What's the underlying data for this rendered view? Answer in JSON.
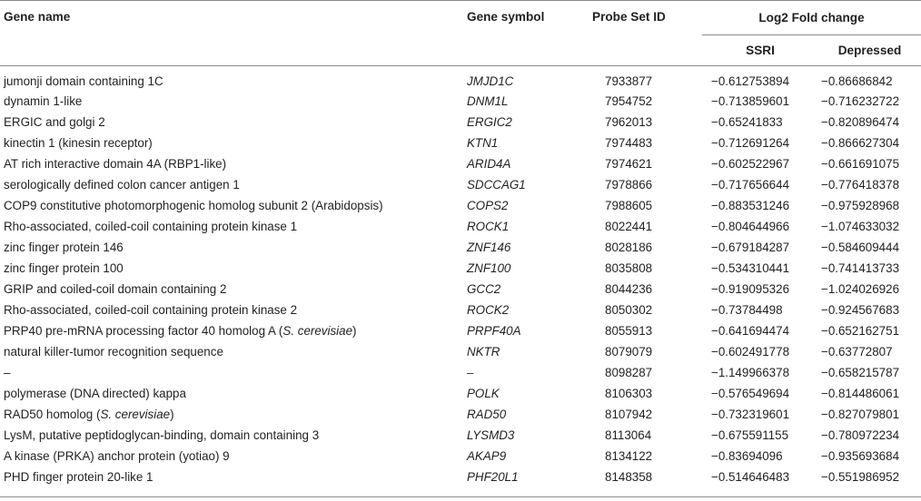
{
  "headers": {
    "gene_name": "Gene name",
    "gene_symbol": "Gene symbol",
    "probe_set_id": "Probe Set ID",
    "log2_fold_change": "Log2 Fold change",
    "ssri": "SSRI",
    "depressed": "Depressed"
  },
  "rows": [
    {
      "name": "jumonji domain containing 1C",
      "symbol": "JMJD1C",
      "probe": "7933877",
      "ssri": "−0.612753894",
      "depressed": "−0.86686842"
    },
    {
      "name": "dynamin 1-like",
      "symbol": "DNM1L",
      "probe": "7954752",
      "ssri": "−0.713859601",
      "depressed": "−0.716232722"
    },
    {
      "name": "ERGIC and golgi 2",
      "symbol": "ERGIC2",
      "probe": "7962013",
      "ssri": "−0.65241833",
      "depressed": "−0.820896474"
    },
    {
      "name": "kinectin 1 (kinesin receptor)",
      "symbol": "KTN1",
      "probe": "7974483",
      "ssri": "−0.712691264",
      "depressed": "−0.866627304"
    },
    {
      "name": "AT rich interactive domain 4A (RBP1-like)",
      "symbol": "ARID4A",
      "probe": "7974621",
      "ssri": "−0.602522967",
      "depressed": "−0.661691075"
    },
    {
      "name": "serologically defined colon cancer antigen 1",
      "symbol": "SDCCAG1",
      "probe": "7978866",
      "ssri": "−0.717656644",
      "depressed": "−0.776418378"
    },
    {
      "name": "COP9 constitutive photomorphogenic homolog subunit 2 (Arabidopsis)",
      "symbol": "COPS2",
      "probe": "7988605",
      "ssri": "−0.883531246",
      "depressed": "−0.975928968"
    },
    {
      "name": "Rho-associated, coiled-coil containing protein kinase 1",
      "symbol": "ROCK1",
      "probe": "8022441",
      "ssri": "−0.804644966",
      "depressed": "−1.074633032"
    },
    {
      "name": "zinc finger protein 146",
      "symbol": "ZNF146",
      "probe": "8028186",
      "ssri": "−0.679184287",
      "depressed": "−0.584609444"
    },
    {
      "name": "zinc finger protein 100",
      "symbol": "ZNF100",
      "probe": "8035808",
      "ssri": "−0.534310441",
      "depressed": "−0.741413733"
    },
    {
      "name": "GRIP and coiled-coil domain containing 2",
      "symbol": "GCC2",
      "probe": "8044236",
      "ssri": "−0.919095326",
      "depressed": "−1.024026926"
    },
    {
      "name": "Rho-associated, coiled-coil containing protein kinase 2",
      "symbol": "ROCK2",
      "probe": "8050302",
      "ssri": "−0.73784498",
      "depressed": "−0.924567683"
    },
    {
      "name_pre": "PRP40 pre-mRNA processing factor 40 homolog A (",
      "name_italic": "S. cerevisiae",
      "name_post": ")",
      "symbol": "PRPF40A",
      "probe": "8055913",
      "ssri": "−0.641694474",
      "depressed": "−0.652162751"
    },
    {
      "name": "natural killer-tumor recognition sequence",
      "symbol": "NKTR",
      "probe": "8079079",
      "ssri": "−0.602491778",
      "depressed": "−0.63772807"
    },
    {
      "name": "–",
      "symbol": "–",
      "probe": "8098287",
      "ssri": "−1.149966378",
      "depressed": "−0.658215787"
    },
    {
      "name": "polymerase (DNA directed) kappa",
      "symbol": "POLK",
      "probe": "8106303",
      "ssri": "−0.576549694",
      "depressed": "−0.814486061"
    },
    {
      "name_pre": "RAD50 homolog (",
      "name_italic": "S. cerevisiae",
      "name_post": ")",
      "symbol": "RAD50",
      "probe": "8107942",
      "ssri": "−0.732319601",
      "depressed": "−0.827079801"
    },
    {
      "name": "LysM, putative peptidoglycan-binding, domain containing 3",
      "symbol": "LYSMD3",
      "probe": "8113064",
      "ssri": "−0.675591155",
      "depressed": "−0.780972234"
    },
    {
      "name": "A kinase (PRKA) anchor protein (yotiao) 9",
      "symbol": "AKAP9",
      "probe": "8134122",
      "ssri": "−0.83694096",
      "depressed": "−0.935693684"
    },
    {
      "name": "PHD finger protein 20-like 1",
      "symbol": "PHF20L1",
      "probe": "8148358",
      "ssri": "−0.514646483",
      "depressed": "−0.551986952"
    }
  ]
}
